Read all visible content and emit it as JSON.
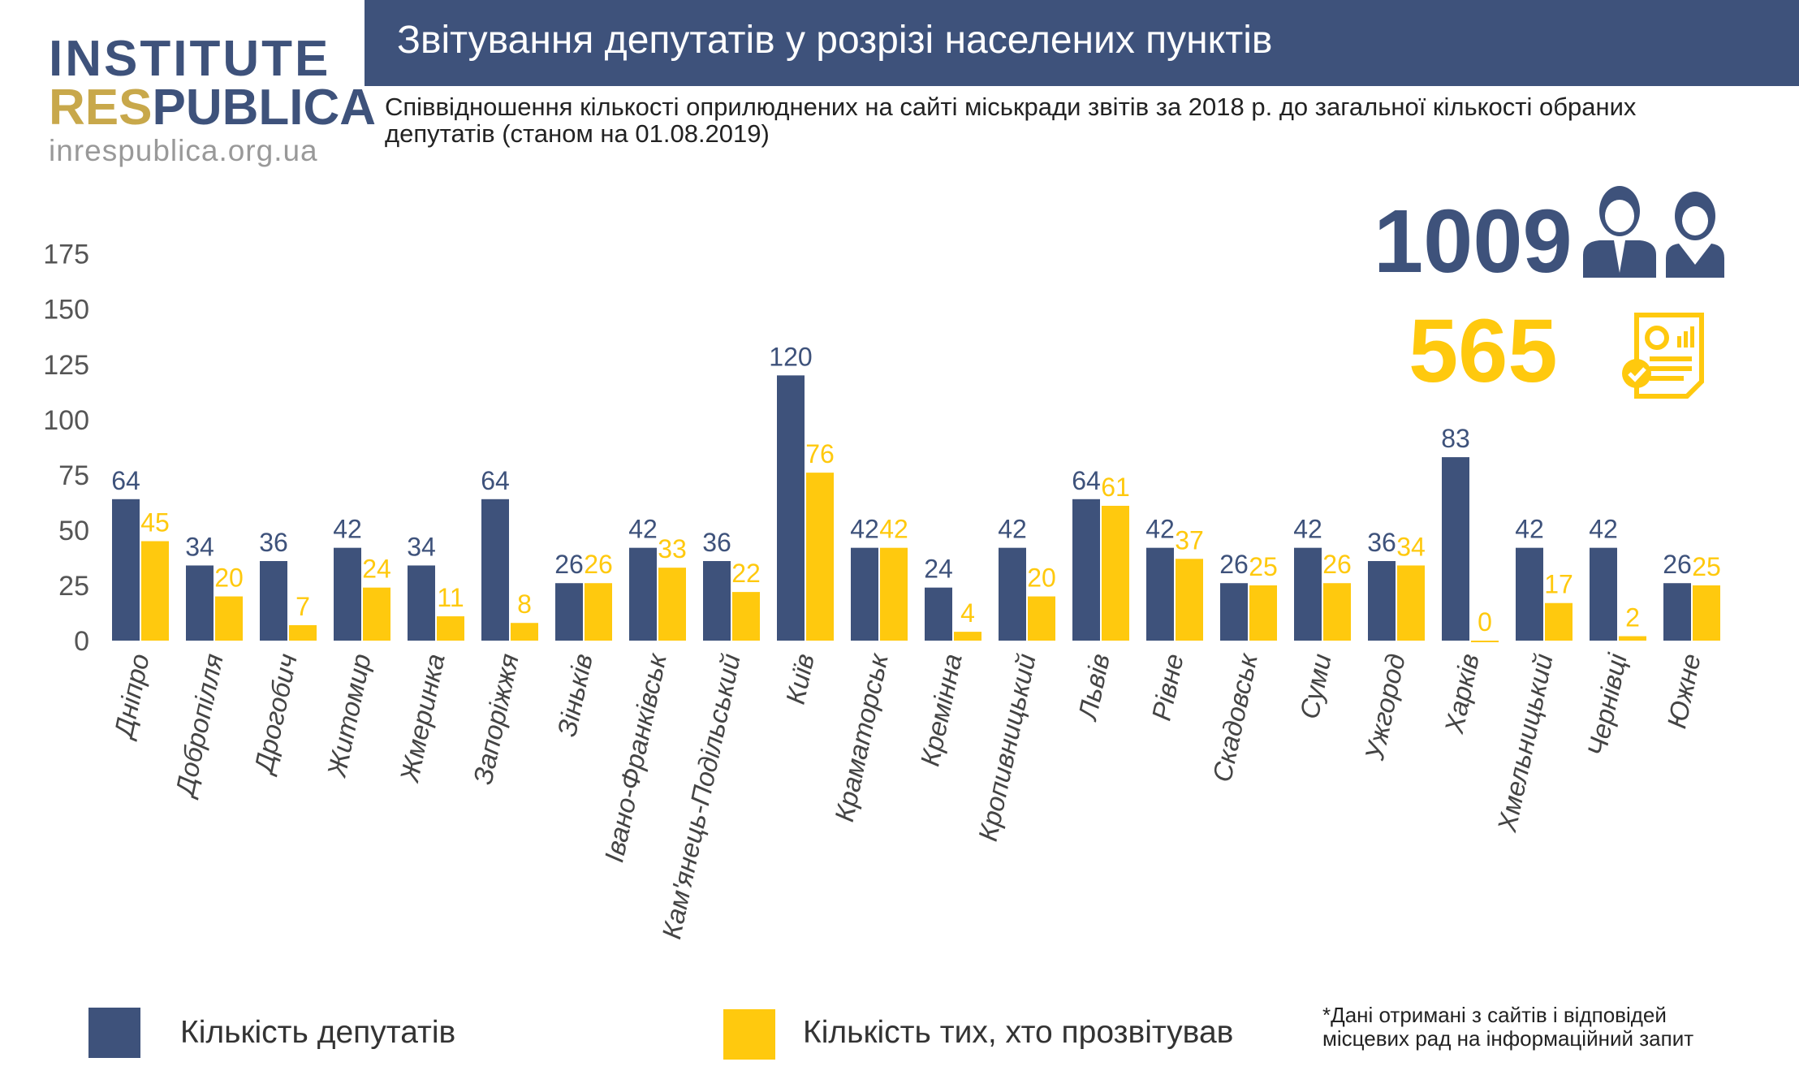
{
  "logo": {
    "line1": "INSTITUTE",
    "line2a": "RES",
    "line2b": "PUBLICA",
    "line3": "inrespublica.org.ua"
  },
  "header": {
    "title": "Звітування депутатів у розрізі населених пунктів"
  },
  "subtitle": "Співвідношення кількості оприлюднених на сайті міськради звітів за 2018 р. до загальної кількості обраних депутатів (станом на 01.08.2019)",
  "totals": {
    "deputies": "1009",
    "reported": "565",
    "deputies_icon": "man-woman-icon",
    "reported_icon": "report-check-icon"
  },
  "legend": {
    "deputies": "Кількість депутатів",
    "reported": "Кількість тих, хто прозвітував"
  },
  "footnote": {
    "line1": "*Дані отримані з сайтів і відповідей",
    "line2": "місцевих рад на інформаційний запит"
  },
  "colors": {
    "deputies": "#3e527b",
    "reported": "#ffc90e"
  },
  "chart_data": {
    "type": "bar",
    "categories": [
      "Дніпро",
      "Добропілля",
      "Дрогобич",
      "Житомир",
      "Жмеринка",
      "Запоріжжя",
      "Зіньків",
      "Івано-Франківськ",
      "Кам'янець-Подільський",
      "Київ",
      "Краматорськ",
      "Кремінна",
      "Кропивницький",
      "Львів",
      "Рівне",
      "Скадовськ",
      "Суми",
      "Ужгород",
      "Харків",
      "Хмельницький",
      "Чернівці",
      "Южне"
    ],
    "series": [
      {
        "name": "Кількість депутатів",
        "values": [
          64,
          34,
          36,
          42,
          34,
          64,
          26,
          42,
          36,
          120,
          42,
          24,
          42,
          64,
          42,
          26,
          42,
          36,
          83,
          42,
          42,
          26
        ]
      },
      {
        "name": "Кількість тих, хто прозвітував",
        "values": [
          45,
          20,
          7,
          24,
          11,
          8,
          26,
          33,
          22,
          76,
          42,
          4,
          20,
          61,
          37,
          25,
          26,
          34,
          0,
          17,
          2,
          25
        ]
      }
    ],
    "yticks": [
      0,
      25,
      50,
      75,
      100,
      125,
      150,
      175
    ],
    "ylim": [
      0,
      175
    ],
    "grid": false,
    "legend_position": "bottom"
  }
}
